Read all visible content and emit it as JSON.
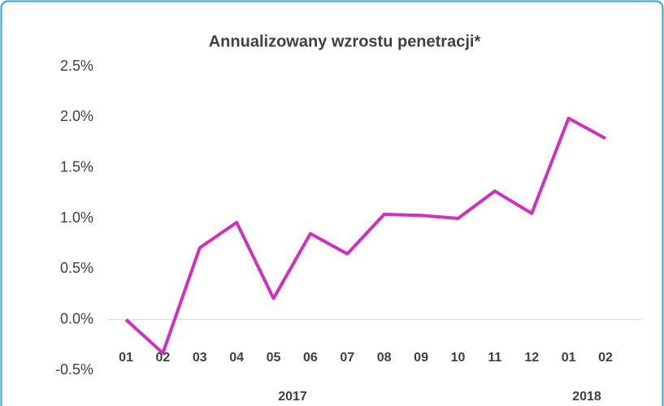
{
  "chart_data": {
    "type": "line",
    "title": "Annualizowany wzrostu penetracji*",
    "categories": [
      "01",
      "02",
      "03",
      "04",
      "05",
      "06",
      "07",
      "08",
      "09",
      "10",
      "11",
      "12",
      "01",
      "02"
    ],
    "year_labels": [
      "2017",
      "2018"
    ],
    "series": [
      {
        "name": "Annualizowany wzrostu penetracji",
        "color": "#d02fc0",
        "values": [
          0.0,
          -0.33,
          0.71,
          0.96,
          0.21,
          0.85,
          0.65,
          1.04,
          1.03,
          1.0,
          1.27,
          1.05,
          1.99,
          1.79
        ]
      }
    ],
    "ylim": [
      -0.5,
      2.5
    ],
    "yticks": [
      {
        "value": -0.5,
        "label": "-0.5%"
      },
      {
        "value": 0,
        "label": "0.0%"
      },
      {
        "value": 0.5,
        "label": "0.5%"
      },
      {
        "value": 1,
        "label": "1.0%"
      },
      {
        "value": 1.5,
        "label": "1.5%"
      },
      {
        "value": 2,
        "label": "2.0%"
      },
      {
        "value": 2.5,
        "label": "2.5%"
      }
    ],
    "grid": false
  }
}
